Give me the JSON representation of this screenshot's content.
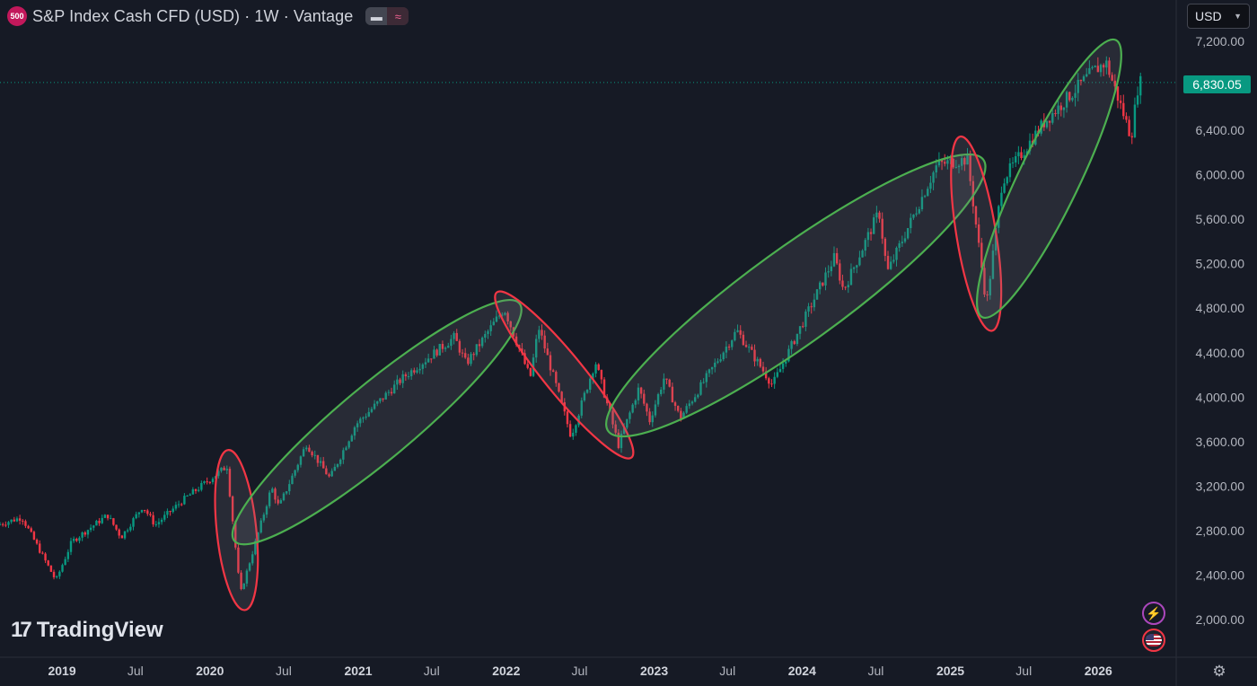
{
  "header": {
    "symbol_badge": "500",
    "title": "S&P Index Cash CFD (USD) · 1W · Vantage",
    "pill_left_icon": "minus-icon",
    "pill_right_icon": "approx-icon"
  },
  "currency_select": {
    "value": "USD"
  },
  "last_price": "6,830.05",
  "logo": {
    "text": "TradingView"
  },
  "icons": {
    "bolt": "⚡",
    "gear": "⚙"
  },
  "colors": {
    "bg": "#161a25",
    "up": "#089981",
    "down": "#f23645",
    "ellipse_green": "#4caf50",
    "ellipse_red": "#f23645"
  },
  "chart_data": {
    "type": "candlestick",
    "timeframe": "1W",
    "ylim": [
      1800,
      7400
    ],
    "y_ticks": [
      2000,
      2400,
      2800,
      3200,
      3600,
      4000,
      4400,
      4800,
      5200,
      5600,
      6000,
      6400,
      7200
    ],
    "y_tick_labels": [
      "2,000.00",
      "2,400.00",
      "2,800.00",
      "3,200.00",
      "3,600.00",
      "4,000.00",
      "4,400.00",
      "4,800.00",
      "5,200.00",
      "5,600.00",
      "6,000.00",
      "6,400.00",
      "7,200.00"
    ],
    "xlim": [
      "2018-08-01",
      "2026-07-01"
    ],
    "x_ticks": [
      {
        "label": "2019",
        "date": "2019-01-01"
      },
      {
        "label": "Jul",
        "date": "2019-07-01"
      },
      {
        "label": "2020",
        "date": "2020-01-01"
      },
      {
        "label": "Jul",
        "date": "2020-07-01"
      },
      {
        "label": "2021",
        "date": "2021-01-01"
      },
      {
        "label": "Jul",
        "date": "2021-07-01"
      },
      {
        "label": "2022",
        "date": "2022-01-01"
      },
      {
        "label": "Jul",
        "date": "2022-07-01"
      },
      {
        "label": "2023",
        "date": "2023-01-01"
      },
      {
        "label": "Jul",
        "date": "2023-07-01"
      },
      {
        "label": "2024",
        "date": "2024-01-01"
      },
      {
        "label": "Jul",
        "date": "2024-07-01"
      },
      {
        "label": "2025",
        "date": "2025-01-01"
      },
      {
        "label": "Jul",
        "date": "2025-07-01"
      },
      {
        "label": "2026",
        "date": "2026-01-01"
      }
    ],
    "last_price": 6830.05,
    "price_path": [
      [
        "2018-08-01",
        2850
      ],
      [
        "2018-10-01",
        2920
      ],
      [
        "2018-12-24",
        2350
      ],
      [
        "2019-02-01",
        2700
      ],
      [
        "2019-04-30",
        2940
      ],
      [
        "2019-06-03",
        2740
      ],
      [
        "2019-07-26",
        3020
      ],
      [
        "2019-08-26",
        2850
      ],
      [
        "2019-11-01",
        3070
      ],
      [
        "2020-02-19",
        3380
      ],
      [
        "2020-03-23",
        2230
      ],
      [
        "2020-06-08",
        3190
      ],
      [
        "2020-06-26",
        3010
      ],
      [
        "2020-09-02",
        3580
      ],
      [
        "2020-10-30",
        3270
      ],
      [
        "2021-01-01",
        3750
      ],
      [
        "2021-04-30",
        4180
      ],
      [
        "2021-09-02",
        4540
      ],
      [
        "2021-10-01",
        4300
      ],
      [
        "2022-01-03",
        4800
      ],
      [
        "2022-03-08",
        4170
      ],
      [
        "2022-03-29",
        4630
      ],
      [
        "2022-06-17",
        3650
      ],
      [
        "2022-08-16",
        4320
      ],
      [
        "2022-10-12",
        3570
      ],
      [
        "2022-12-01",
        4080
      ],
      [
        "2022-12-28",
        3790
      ],
      [
        "2023-02-02",
        4180
      ],
      [
        "2023-03-13",
        3810
      ],
      [
        "2023-07-31",
        4600
      ],
      [
        "2023-10-27",
        4110
      ],
      [
        "2024-03-28",
        5260
      ],
      [
        "2024-04-19",
        4960
      ],
      [
        "2024-07-16",
        5670
      ],
      [
        "2024-08-05",
        5120
      ],
      [
        "2024-12-06",
        6090
      ],
      [
        "2025-02-19",
        6140
      ],
      [
        "2025-04-07",
        4830
      ],
      [
        "2025-05-16",
        5950
      ],
      [
        "2025-08-29",
        6480
      ],
      [
        "2025-12-26",
        6930
      ],
      [
        "2026-01-27",
        7010
      ],
      [
        "2026-03-30",
        6340
      ],
      [
        "2026-04-17",
        6830.05
      ]
    ],
    "annotations": [
      {
        "shape": "ellipse",
        "color": "red",
        "from": [
          "2020-02-19",
          3380
        ],
        "to": [
          "2020-03-23",
          2230
        ]
      },
      {
        "shape": "ellipse",
        "color": "green",
        "from": [
          "2020-04-01",
          2800
        ],
        "to": [
          "2022-01-03",
          4750
        ]
      },
      {
        "shape": "ellipse",
        "color": "red",
        "from": [
          "2022-01-03",
          4830
        ],
        "to": [
          "2022-10-12",
          3570
        ]
      },
      {
        "shape": "ellipse",
        "color": "green",
        "from": [
          "2022-10-12",
          3780
        ],
        "to": [
          "2025-02-19",
          6050
        ]
      },
      {
        "shape": "ellipse",
        "color": "red",
        "from": [
          "2025-02-01",
          6200
        ],
        "to": [
          "2025-04-07",
          4740
        ]
      },
      {
        "shape": "ellipse",
        "color": "green",
        "from": [
          "2025-04-07",
          4850
        ],
        "to": [
          "2026-01-27",
          7080
        ]
      }
    ]
  }
}
